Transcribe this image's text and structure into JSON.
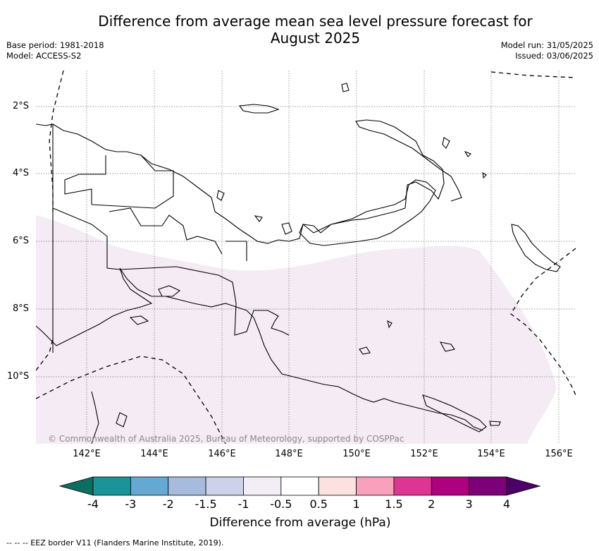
{
  "title": {
    "line1": "Difference from average mean sea level pressure forecast for",
    "line2": "August 2025"
  },
  "meta": {
    "base_period": "Base period: 1981-2018",
    "model": "Model: ACCESS-S2",
    "model_run": "Model run: 31/05/2025",
    "issued": "Issued: 03/06/2025"
  },
  "map": {
    "lat_labels": [
      "2°S",
      "4°S",
      "6°S",
      "8°S",
      "10°S"
    ],
    "lon_labels": [
      "142°E",
      "144°E",
      "146°E",
      "148°E",
      "150°E",
      "152°E",
      "154°E",
      "156°E"
    ],
    "copyright": "© Commonwealth of Australia 2025, Bureau of Meteorology, supported by COSPPac",
    "anomaly_fill_color": "#f4ebf4",
    "line_color": "#000000"
  },
  "colorbar": {
    "ticks": [
      "-4",
      "-3",
      "-2",
      "-1.5",
      "-1",
      "-0.5",
      "0.5",
      "1",
      "1.5",
      "2",
      "3",
      "4"
    ],
    "colors": [
      "#0b6e5e",
      "#1b9399",
      "#65a9d3",
      "#a7bbdc",
      "#ced2e8",
      "#f3eef6",
      "#ffffff",
      "#fde0e0",
      "#f8a0bc",
      "#dc3593",
      "#ae0180",
      "#7c0077",
      "#4c0067"
    ],
    "label": "Difference from average (hPa)"
  },
  "footnote": "--  --  -- EEZ border V11 (Flanders Marine Institute, 2019)."
}
